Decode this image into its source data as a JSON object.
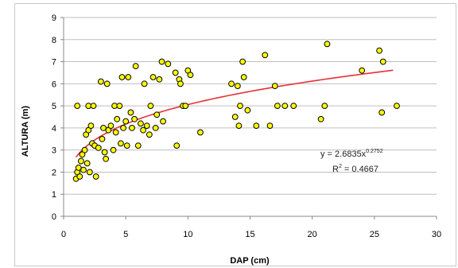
{
  "chart_data": {
    "type": "scatter",
    "xlabel": "DAP (cm)",
    "ylabel": "ALTURA (m)",
    "xlim": [
      0,
      30
    ],
    "ylim": [
      0,
      9
    ],
    "x_ticks": [
      "0",
      "5",
      "10",
      "15",
      "20",
      "25",
      "30"
    ],
    "y_ticks": [
      "0",
      "1",
      "2",
      "3",
      "4",
      "5",
      "6",
      "7",
      "8",
      "9"
    ],
    "grid": "horizontal",
    "marker_color": "#ffff00",
    "marker_edge_color": "#000000",
    "trendline_color": "#e8303a",
    "points": [
      {
        "x": 1.0,
        "y": 1.7
      },
      {
        "x": 1.1,
        "y": 2.0
      },
      {
        "x": 1.2,
        "y": 2.2
      },
      {
        "x": 1.3,
        "y": 1.8
      },
      {
        "x": 1.1,
        "y": 5.0
      },
      {
        "x": 1.4,
        "y": 2.5
      },
      {
        "x": 1.5,
        "y": 2.8
      },
      {
        "x": 1.6,
        "y": 2.1
      },
      {
        "x": 1.7,
        "y": 3.0
      },
      {
        "x": 1.8,
        "y": 3.7
      },
      {
        "x": 1.9,
        "y": 2.4
      },
      {
        "x": 2.0,
        "y": 5.0
      },
      {
        "x": 2.0,
        "y": 3.9
      },
      {
        "x": 2.1,
        "y": 2.0
      },
      {
        "x": 2.2,
        "y": 4.1
      },
      {
        "x": 2.3,
        "y": 3.3
      },
      {
        "x": 2.4,
        "y": 5.0
      },
      {
        "x": 2.5,
        "y": 3.2
      },
      {
        "x": 2.6,
        "y": 1.8
      },
      {
        "x": 2.8,
        "y": 3.1
      },
      {
        "x": 3.0,
        "y": 6.1
      },
      {
        "x": 3.1,
        "y": 3.5
      },
      {
        "x": 3.2,
        "y": 4.0
      },
      {
        "x": 3.3,
        "y": 2.9
      },
      {
        "x": 3.4,
        "y": 2.6
      },
      {
        "x": 3.5,
        "y": 6.0
      },
      {
        "x": 3.6,
        "y": 3.9
      },
      {
        "x": 3.8,
        "y": 4.1
      },
      {
        "x": 4.0,
        "y": 3.0
      },
      {
        "x": 4.1,
        "y": 5.0
      },
      {
        "x": 4.2,
        "y": 3.8
      },
      {
        "x": 4.3,
        "y": 4.4
      },
      {
        "x": 4.5,
        "y": 5.0
      },
      {
        "x": 4.6,
        "y": 3.3
      },
      {
        "x": 4.7,
        "y": 6.3
      },
      {
        "x": 4.8,
        "y": 4.0
      },
      {
        "x": 5.0,
        "y": 4.3
      },
      {
        "x": 5.1,
        "y": 3.2
      },
      {
        "x": 5.2,
        "y": 6.3
      },
      {
        "x": 5.4,
        "y": 4.7
      },
      {
        "x": 5.5,
        "y": 4.0
      },
      {
        "x": 5.7,
        "y": 4.4
      },
      {
        "x": 5.8,
        "y": 6.8
      },
      {
        "x": 6.0,
        "y": 3.2
      },
      {
        "x": 6.2,
        "y": 4.2
      },
      {
        "x": 6.4,
        "y": 3.9
      },
      {
        "x": 6.5,
        "y": 6.0
      },
      {
        "x": 6.7,
        "y": 4.1
      },
      {
        "x": 6.9,
        "y": 3.7
      },
      {
        "x": 7.0,
        "y": 5.0
      },
      {
        "x": 7.2,
        "y": 6.3
      },
      {
        "x": 7.4,
        "y": 4.0
      },
      {
        "x": 7.5,
        "y": 4.6
      },
      {
        "x": 7.7,
        "y": 6.2
      },
      {
        "x": 7.9,
        "y": 7.0
      },
      {
        "x": 8.0,
        "y": 4.3
      },
      {
        "x": 8.4,
        "y": 6.9
      },
      {
        "x": 9.0,
        "y": 6.5
      },
      {
        "x": 9.1,
        "y": 3.2
      },
      {
        "x": 9.3,
        "y": 6.2
      },
      {
        "x": 9.4,
        "y": 6.0
      },
      {
        "x": 9.6,
        "y": 5.0
      },
      {
        "x": 9.8,
        "y": 5.0
      },
      {
        "x": 10.0,
        "y": 6.6
      },
      {
        "x": 10.2,
        "y": 6.4
      },
      {
        "x": 11.0,
        "y": 3.8
      },
      {
        "x": 13.5,
        "y": 6.0
      },
      {
        "x": 13.8,
        "y": 4.5
      },
      {
        "x": 14.0,
        "y": 5.9
      },
      {
        "x": 14.1,
        "y": 4.1
      },
      {
        "x": 14.2,
        "y": 5.0
      },
      {
        "x": 14.4,
        "y": 7.0
      },
      {
        "x": 14.5,
        "y": 6.3
      },
      {
        "x": 14.8,
        "y": 4.8
      },
      {
        "x": 15.5,
        "y": 4.1
      },
      {
        "x": 16.2,
        "y": 7.3
      },
      {
        "x": 16.6,
        "y": 4.1
      },
      {
        "x": 17.0,
        "y": 5.9
      },
      {
        "x": 17.2,
        "y": 5.0
      },
      {
        "x": 17.8,
        "y": 5.0
      },
      {
        "x": 18.5,
        "y": 5.0
      },
      {
        "x": 20.7,
        "y": 4.4
      },
      {
        "x": 21.0,
        "y": 5.0
      },
      {
        "x": 21.2,
        "y": 7.8
      },
      {
        "x": 24.0,
        "y": 6.6
      },
      {
        "x": 25.4,
        "y": 7.5
      },
      {
        "x": 25.6,
        "y": 4.7
      },
      {
        "x": 25.7,
        "y": 7.0
      },
      {
        "x": 26.8,
        "y": 5.0
      }
    ],
    "trendline": {
      "type": "power",
      "a": 2.6835,
      "b": 0.2752,
      "x_range": [
        1.0,
        26.5
      ]
    },
    "annotations": {
      "equation_base": "y = 2.6835x",
      "equation_exponent": "0.2752",
      "r_squared_base": "R",
      "r_squared_sup": "2",
      "r_squared_value": " = 0.4667"
    }
  }
}
